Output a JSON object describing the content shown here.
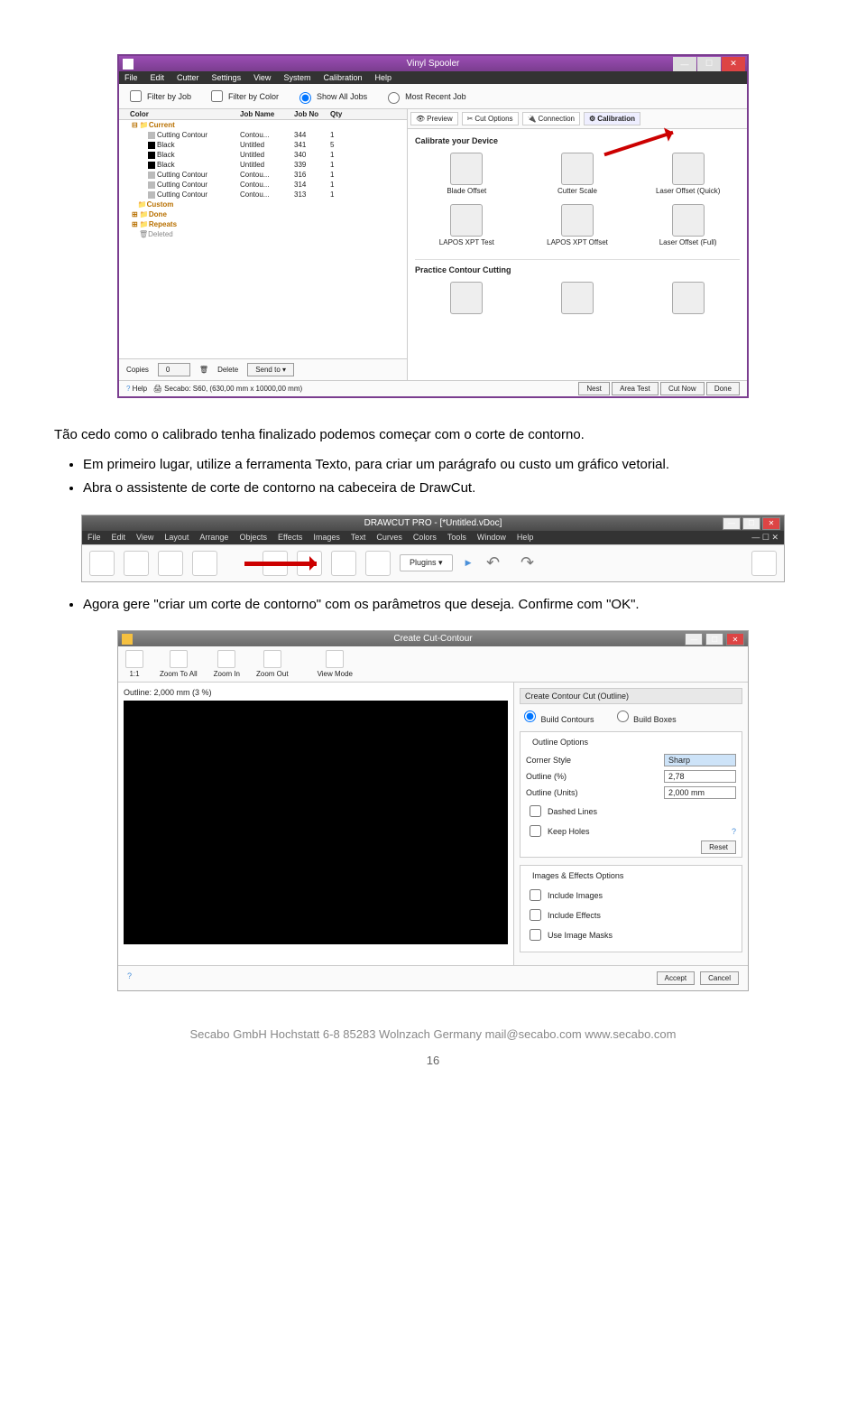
{
  "vinylSpooler": {
    "title": "Vinyl Spooler",
    "menu": [
      "File",
      "Edit",
      "Cutter",
      "Settings",
      "View",
      "System",
      "Calibration",
      "Help"
    ],
    "filters": {
      "byJob": "Filter by Job",
      "byColor": "Filter by Color",
      "showAll": "Show All Jobs",
      "mostRecent": "Most Recent Job"
    },
    "columns": {
      "color": "Color",
      "jobName": "Job Name",
      "jobNo": "Job No",
      "qty": "Qty"
    },
    "folders": {
      "current": "Current",
      "custom": "Custom",
      "done": "Done",
      "repeats": "Repeats",
      "deleted": "Deleted"
    },
    "rows": [
      {
        "color": "Cutting Contour",
        "sw": "#bbbbbb",
        "jobName": "Contou...",
        "jobNo": "344",
        "qty": "1"
      },
      {
        "color": "Black",
        "sw": "#000000",
        "jobName": "Untitled",
        "jobNo": "341",
        "qty": "5"
      },
      {
        "color": "Black",
        "sw": "#000000",
        "jobName": "Untitled",
        "jobNo": "340",
        "qty": "1"
      },
      {
        "color": "Black",
        "sw": "#000000",
        "jobName": "Untitled",
        "jobNo": "339",
        "qty": "1"
      },
      {
        "color": "Cutting Contour",
        "sw": "#bbbbbb",
        "jobName": "Contou...",
        "jobNo": "316",
        "qty": "1"
      },
      {
        "color": "Cutting Contour",
        "sw": "#bbbbbb",
        "jobName": "Contou...",
        "jobNo": "314",
        "qty": "1"
      },
      {
        "color": "Cutting Contour",
        "sw": "#bbbbbb",
        "jobName": "Contou...",
        "jobNo": "313",
        "qty": "1"
      }
    ],
    "tabs": {
      "preview": "Preview",
      "cutOptions": "Cut Options",
      "connection": "Connection",
      "calibration": "Calibration"
    },
    "calHeader": "Calibrate your Device",
    "calItems": [
      "Blade Offset",
      "Cutter Scale",
      "Laser Offset (Quick)",
      "LAPOS XPT Test",
      "LAPOS XPT Offset",
      "Laser Offset (Full)"
    ],
    "practice": "Practice Contour Cutting",
    "bottom": {
      "copies": "Copies",
      "copiesVal": "0",
      "delete": "Delete",
      "sendTo": "Send to"
    },
    "footer": {
      "help": "Help",
      "status": "Secabo: S60, (630,00 mm x 10000,00 mm)",
      "btns": [
        "Nest",
        "Area Test",
        "Cut Now",
        "Done"
      ]
    }
  },
  "para1": "Tão cedo como o calibrado tenha finalizado podemos começar com o corte de contorno.",
  "bullet1": "Em primeiro lugar, utilize a ferramenta Texto, para criar um parágrafo ou custo um gráfico vetorial.",
  "bullet2": "Abra o assistente de corte de contorno na cabeceira de DrawCut.",
  "drawcut": {
    "title": "DRAWCUT PRO - [*Untitled.vDoc]",
    "menu": [
      "File",
      "Edit",
      "View",
      "Layout",
      "Arrange",
      "Objects",
      "Effects",
      "Images",
      "Text",
      "Curves",
      "Colors",
      "Tools",
      "Window",
      "Help"
    ],
    "plugins": "Plugins"
  },
  "bullet3": "Agora gere \"criar um corte de contorno\" com os parâmetros que deseja. Confirme com \"OK\".",
  "cutContour": {
    "title": "Create Cut-Contour",
    "toolbar": {
      "oneToOne": "1:1",
      "zoomAll": "Zoom To All",
      "zoomIn": "Zoom In",
      "zoomOut": "Zoom Out",
      "viewMode": "View Mode"
    },
    "outlineLabel": "Outline: 2,000 mm (3 %)",
    "panelTitle": "Create Contour Cut (Outline)",
    "buildContours": "Build Contours",
    "buildBoxes": "Build Boxes",
    "outlineOptions": "Outline Options",
    "cornerStyle": "Corner Style",
    "cornerStyleVal": "Sharp",
    "outlinePct": "Outline (%)",
    "outlinePctVal": "2,78",
    "outlineUnits": "Outline (Units)",
    "outlineUnitsVal": "2,000 mm",
    "dashed": "Dashed Lines",
    "keepHoles": "Keep Holes",
    "reset": "Reset",
    "imgEffects": "Images & Effects Options",
    "inclImages": "Include Images",
    "inclEffects": "Include Effects",
    "useMasks": "Use Image Masks",
    "accept": "Accept",
    "cancel": "Cancel"
  },
  "footerLine": "Secabo GmbH   Hochstatt 6-8   85283 Wolnzach   Germany   mail@secabo.com   www.secabo.com",
  "pageNum": "16"
}
